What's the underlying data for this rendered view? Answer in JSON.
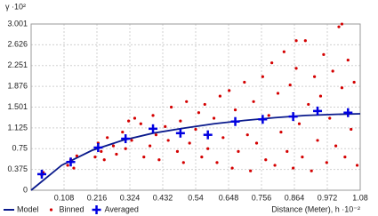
{
  "chart_data": {
    "type": "scatter",
    "y_label": "γ ·10²",
    "x_label": "Distance (Meter), h ·10⁻²",
    "xlim": [
      0,
      1.08
    ],
    "ylim": [
      0,
      3.001
    ],
    "xticks": [
      0.108,
      0.216,
      0.324,
      0.432,
      0.54,
      0.648,
      0.756,
      0.864,
      0.972,
      1.08
    ],
    "yticks": [
      0,
      0.375,
      0.75,
      1.125,
      1.501,
      1.876,
      2.251,
      2.626,
      3.001
    ],
    "grid": true,
    "series": [
      {
        "name": "Model",
        "color": "#0a1a8c",
        "marker": "line",
        "x": [
          0,
          0.1,
          0.2,
          0.3,
          0.4,
          0.5,
          0.6,
          0.7,
          0.8,
          0.9,
          1.0,
          1.08
        ],
        "values": [
          0,
          0.45,
          0.72,
          0.9,
          1.03,
          1.12,
          1.2,
          1.26,
          1.31,
          1.35,
          1.37,
          1.38
        ]
      },
      {
        "name": "Binned",
        "color": "#d40000",
        "marker": "dot",
        "x": [
          0.035,
          0.04,
          0.12,
          0.13,
          0.14,
          0.15,
          0.21,
          0.22,
          0.23,
          0.24,
          0.25,
          0.27,
          0.28,
          0.3,
          0.31,
          0.32,
          0.33,
          0.34,
          0.36,
          0.37,
          0.39,
          0.4,
          0.41,
          0.42,
          0.44,
          0.45,
          0.46,
          0.48,
          0.49,
          0.5,
          0.51,
          0.52,
          0.54,
          0.55,
          0.56,
          0.57,
          0.58,
          0.6,
          0.61,
          0.62,
          0.63,
          0.65,
          0.66,
          0.67,
          0.68,
          0.7,
          0.71,
          0.72,
          0.73,
          0.74,
          0.76,
          0.77,
          0.78,
          0.79,
          0.8,
          0.81,
          0.82,
          0.83,
          0.84,
          0.85,
          0.86,
          0.87,
          0.88,
          0.89,
          0.9,
          0.91,
          0.92,
          0.93,
          0.94,
          0.95,
          0.96,
          0.97,
          0.98,
          0.99,
          1.0,
          1.01,
          1.02,
          1.03,
          1.04,
          1.05,
          1.06,
          1.07,
          1.02,
          0.87
        ],
        "values": [
          0.27,
          0.32,
          0.45,
          0.55,
          0.4,
          0.62,
          0.6,
          0.85,
          0.7,
          0.55,
          0.95,
          0.8,
          0.65,
          1.05,
          0.75,
          1.25,
          0.9,
          1.3,
          1.2,
          0.6,
          0.8,
          1.35,
          1.0,
          0.55,
          1.15,
          0.9,
          1.5,
          0.7,
          1.25,
          0.5,
          1.6,
          0.85,
          1.1,
          1.4,
          0.6,
          1.55,
          0.75,
          1.3,
          0.5,
          1.7,
          0.95,
          1.8,
          0.4,
          1.45,
          0.7,
          1.95,
          1.0,
          0.35,
          1.6,
          0.85,
          2.05,
          0.55,
          1.35,
          2.3,
          0.45,
          1.75,
          1.05,
          2.5,
          0.7,
          1.9,
          0.4,
          2.2,
          1.2,
          0.6,
          2.7,
          1.55,
          0.35,
          2.05,
          0.9,
          1.7,
          2.45,
          0.5,
          1.3,
          2.15,
          0.8,
          2.95,
          1.85,
          0.6,
          2.35,
          1.1,
          1.95,
          0.45,
          3.0,
          2.7
        ]
      },
      {
        "name": "Averaged",
        "color": "#0000e0",
        "marker": "plus",
        "x": [
          0.035,
          0.13,
          0.22,
          0.31,
          0.4,
          0.49,
          0.58,
          0.67,
          0.76,
          0.86,
          0.94,
          1.04
        ],
        "values": [
          0.29,
          0.51,
          0.77,
          0.93,
          1.11,
          1.03,
          1.0,
          1.24,
          1.28,
          1.33,
          1.43,
          1.4
        ]
      }
    ]
  }
}
